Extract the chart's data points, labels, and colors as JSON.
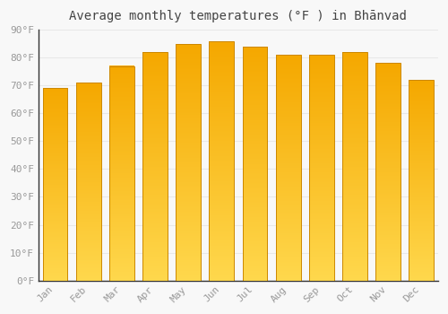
{
  "title": "Average monthly temperatures (°F ) in Bhānvad",
  "months": [
    "Jan",
    "Feb",
    "Mar",
    "Apr",
    "May",
    "Jun",
    "Jul",
    "Aug",
    "Sep",
    "Oct",
    "Nov",
    "Dec"
  ],
  "values": [
    69,
    71,
    77,
    82,
    85,
    86,
    84,
    81,
    81,
    82,
    78,
    72
  ],
  "bar_color_top": "#F5A800",
  "bar_color_bottom": "#FFD84D",
  "ylim": [
    0,
    90
  ],
  "yticks": [
    0,
    10,
    20,
    30,
    40,
    50,
    60,
    70,
    80,
    90
  ],
  "ytick_labels": [
    "0°F",
    "10°F",
    "20°F",
    "30°F",
    "40°F",
    "50°F",
    "60°F",
    "70°F",
    "80°F",
    "90°F"
  ],
  "background_color": "#f8f8f8",
  "grid_color": "#e8e8e8",
  "title_fontsize": 10,
  "tick_fontsize": 8,
  "bar_edge_color": "#CC8800"
}
